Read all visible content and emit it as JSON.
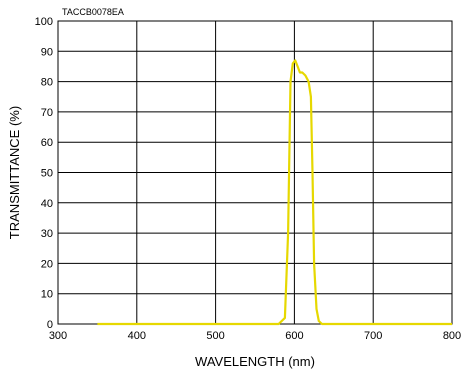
{
  "chart_data": {
    "type": "line",
    "code_label": "TACCB0078EA",
    "xlabel": "WAVELENGTH (nm)",
    "ylabel": "TRANSMITTANCE (%)",
    "xlim": [
      300,
      800
    ],
    "ylim": [
      0,
      100
    ],
    "x_ticks": [
      "300",
      "400",
      "500",
      "600",
      "700",
      "800"
    ],
    "y_ticks": [
      "0",
      "10",
      "20",
      "30",
      "40",
      "50",
      "60",
      "70",
      "80",
      "90",
      "100"
    ],
    "grid": true,
    "line_color": "#e6d800",
    "series": [
      {
        "x": [
          350,
          580,
          588,
          592,
          595,
          598,
          601,
          604,
          607,
          610,
          614,
          618,
          621,
          623,
          625,
          628,
          631,
          635,
          700,
          800
        ],
        "y": [
          0,
          0,
          2,
          30,
          80,
          86,
          87,
          85,
          83,
          83,
          82,
          80,
          75,
          50,
          20,
          5,
          1,
          0,
          0,
          0
        ]
      }
    ]
  }
}
